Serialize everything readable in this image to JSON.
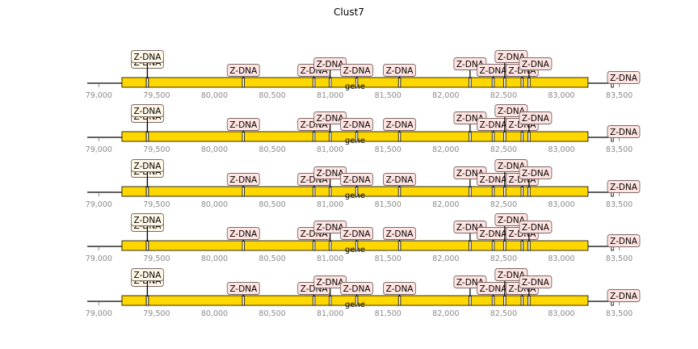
{
  "chart_data": {
    "type": "track",
    "title": "Clust7",
    "xlim": [
      78900,
      83580
    ],
    "xticks": [
      79000,
      79500,
      80000,
      80500,
      81000,
      81500,
      82000,
      82500,
      83000,
      83500
    ],
    "xtick_labels": [
      "79,000",
      "79,500",
      "80,000",
      "80,500",
      "81,000",
      "81,500",
      "82,000",
      "82,500",
      "83,000",
      "83,500"
    ],
    "gene": {
      "label": "gene",
      "start": 79200,
      "end": 83230
    },
    "colors": {
      "gene_fill": "#ffd700",
      "label_fill": "#ffe4e1",
      "label_fill_first": "#fff8e6",
      "tick_color": "#8a8a8a",
      "line_color": "#000000"
    },
    "tracks": [
      {
        "features": [
          {
            "label": "Z-DNA",
            "position": 79420
          },
          {
            "label": "Z-DNA",
            "position": 79420
          },
          {
            "label": "Z-DNA",
            "position": 80250
          },
          {
            "label": "Z-DNA",
            "position": 80860
          },
          {
            "label": "Z-DNA",
            "position": 81000
          },
          {
            "label": "Z-DNA",
            "position": 81230
          },
          {
            "label": "Z-DNA",
            "position": 81600
          },
          {
            "label": "Z-DNA",
            "position": 82210
          },
          {
            "label": "Z-DNA",
            "position": 82410
          },
          {
            "label": "Z-DNA",
            "position": 82510
          },
          {
            "label": "Z-DNA",
            "position": 82660
          },
          {
            "label": "Z-DNA",
            "position": 82720
          },
          {
            "label": "Z-DNA",
            "position": 83440
          }
        ]
      },
      {
        "features": [
          {
            "label": "Z-DNA",
            "position": 79420
          },
          {
            "label": "Z-DNA",
            "position": 79420
          },
          {
            "label": "Z-DNA",
            "position": 80250
          },
          {
            "label": "Z-DNA",
            "position": 80860
          },
          {
            "label": "Z-DNA",
            "position": 81000
          },
          {
            "label": "Z-DNA",
            "position": 81230
          },
          {
            "label": "Z-DNA",
            "position": 81600
          },
          {
            "label": "Z-DNA",
            "position": 82210
          },
          {
            "label": "Z-DNA",
            "position": 82410
          },
          {
            "label": "Z-DNA",
            "position": 82510
          },
          {
            "label": "Z-DNA",
            "position": 82660
          },
          {
            "label": "Z-DNA",
            "position": 82720
          },
          {
            "label": "Z-DNA",
            "position": 83440
          }
        ]
      },
      {
        "features": [
          {
            "label": "Z-DNA",
            "position": 79420
          },
          {
            "label": "Z-DNA",
            "position": 79420
          },
          {
            "label": "Z-DNA",
            "position": 80250
          },
          {
            "label": "Z-DNA",
            "position": 80860
          },
          {
            "label": "Z-DNA",
            "position": 81000
          },
          {
            "label": "Z-DNA",
            "position": 81230
          },
          {
            "label": "Z-DNA",
            "position": 81600
          },
          {
            "label": "Z-DNA",
            "position": 82210
          },
          {
            "label": "Z-DNA",
            "position": 82410
          },
          {
            "label": "Z-DNA",
            "position": 82510
          },
          {
            "label": "Z-DNA",
            "position": 82660
          },
          {
            "label": "Z-DNA",
            "position": 82720
          },
          {
            "label": "Z-DNA",
            "position": 83440
          }
        ]
      },
      {
        "features": [
          {
            "label": "Z-DNA",
            "position": 79420
          },
          {
            "label": "Z-DNA",
            "position": 79420
          },
          {
            "label": "Z-DNA",
            "position": 80250
          },
          {
            "label": "Z-DNA",
            "position": 80860
          },
          {
            "label": "Z-DNA",
            "position": 81000
          },
          {
            "label": "Z-DNA",
            "position": 81230
          },
          {
            "label": "Z-DNA",
            "position": 81600
          },
          {
            "label": "Z-DNA",
            "position": 82210
          },
          {
            "label": "Z-DNA",
            "position": 82410
          },
          {
            "label": "Z-DNA",
            "position": 82510
          },
          {
            "label": "Z-DNA",
            "position": 82660
          },
          {
            "label": "Z-DNA",
            "position": 82720
          },
          {
            "label": "Z-DNA",
            "position": 83440
          }
        ]
      },
      {
        "features": [
          {
            "label": "Z-DNA",
            "position": 79420
          },
          {
            "label": "Z-DNA",
            "position": 79420
          },
          {
            "label": "Z-DNA",
            "position": 80250
          },
          {
            "label": "Z-DNA",
            "position": 80860
          },
          {
            "label": "Z-DNA",
            "position": 81000
          },
          {
            "label": "Z-DNA",
            "position": 81230
          },
          {
            "label": "Z-DNA",
            "position": 81600
          },
          {
            "label": "Z-DNA",
            "position": 82210
          },
          {
            "label": "Z-DNA",
            "position": 82410
          },
          {
            "label": "Z-DNA",
            "position": 82510
          },
          {
            "label": "Z-DNA",
            "position": 82660
          },
          {
            "label": "Z-DNA",
            "position": 82720
          },
          {
            "label": "Z-DNA",
            "position": 83440
          }
        ]
      }
    ]
  }
}
